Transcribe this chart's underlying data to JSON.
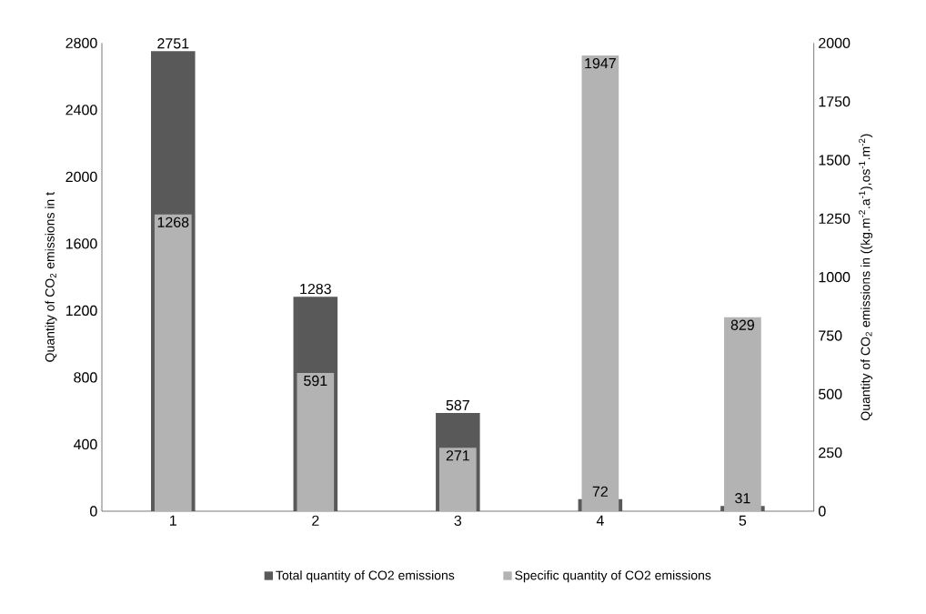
{
  "chart_data": {
    "type": "bar",
    "categories": [
      "1",
      "2",
      "3",
      "4",
      "5"
    ],
    "series": [
      {
        "name": "Total quantity of CO2 emissions",
        "color": "#595959",
        "values": [
          2751,
          1283,
          587,
          72,
          31
        ]
      },
      {
        "name": "Specific quantity of CO2 emissions",
        "color": "#b3b3b3",
        "values": [
          1268,
          591,
          271,
          1947,
          829
        ],
        "axis": "y2"
      }
    ],
    "ylabel": "Quantity of CO$_{2}$ emissions in t",
    "y2label": "Quantity of CO$_{2}$ emissions in ((kg.m$^{-2}$.a$^{-1}$),os$^{-1}$.m$^{-2}$)",
    "ylim": [
      0,
      2800
    ],
    "yticks": [
      0,
      400,
      800,
      1200,
      1600,
      2000,
      2400,
      2800
    ],
    "y2lim": [
      0,
      2000
    ],
    "y2ticks": [
      0,
      250,
      500,
      750,
      1000,
      1250,
      1500,
      1750,
      2000
    ],
    "data_labels": true,
    "legend": "bottom",
    "grid": false
  }
}
